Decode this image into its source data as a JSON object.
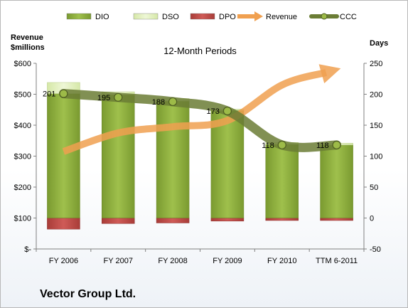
{
  "company": "Vector Group Ltd.",
  "chart_data": {
    "type": "bar",
    "title": "12-Month Periods",
    "y_left_label": [
      "Revenue",
      "$millions"
    ],
    "y_right_label": "Days",
    "categories": [
      "FY 2006",
      "FY 2007",
      "FY 2008",
      "FY 2009",
      "FY 2010",
      "TTM 6-2011"
    ],
    "y_left": {
      "min": 0,
      "max": 600,
      "step": 100,
      "tick_labels": [
        "$-",
        "$100",
        "$200",
        "$300",
        "$400",
        "$500",
        "$600"
      ]
    },
    "y_right": {
      "min": -50,
      "max": 250,
      "step": 50,
      "tick_labels": [
        "-50",
        "0",
        "50",
        "100",
        "150",
        "200",
        "250"
      ]
    },
    "series": [
      {
        "name": "DIO",
        "kind": "bar",
        "axis": "right",
        "values": [
          201,
          199,
          189,
          174,
          119,
          118
        ],
        "color": "#8fb040"
      },
      {
        "name": "DSO",
        "kind": "bar",
        "axis": "right",
        "values": [
          18,
          5,
          4,
          2,
          3,
          3
        ],
        "color": "#e4f0c2"
      },
      {
        "name": "DPO",
        "kind": "bar",
        "axis": "right",
        "values": [
          -18,
          -9,
          -8,
          -5,
          -4,
          -4
        ],
        "color": "#c0504d"
      },
      {
        "name": "Revenue",
        "kind": "arrow-line",
        "axis": "left",
        "values": [
          315,
          375,
          395,
          415,
          530,
          580
        ],
        "color": "#f0a050"
      },
      {
        "name": "CCC",
        "kind": "line",
        "axis": "right",
        "values": [
          201,
          195,
          188,
          173,
          118,
          118
        ],
        "color": "#6b7d35"
      }
    ],
    "data_labels": [
      "201",
      "195",
      "188",
      "173",
      "118",
      "118"
    ],
    "legend": {
      "position": "top",
      "entries": [
        "DIO",
        "DSO",
        "DPO",
        "Revenue",
        "CCC"
      ]
    }
  }
}
